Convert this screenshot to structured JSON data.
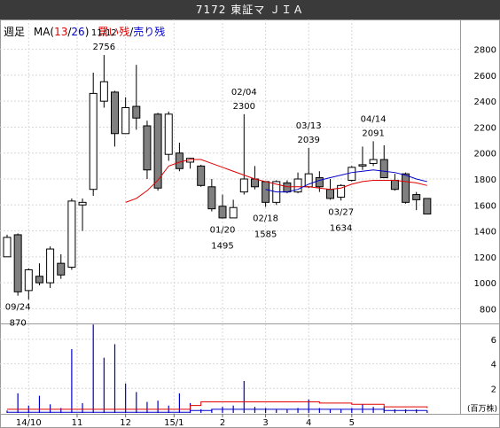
{
  "window": {
    "title": "7172 東証マ ＪＩＡ"
  },
  "header": {
    "period": "週足",
    "ma_prefix": "MA(",
    "ma_short": "13",
    "ma_sep": "/",
    "ma_long": "26",
    "ma_suffix": ")",
    "buy_label": "買い残",
    "slash": "/",
    "sell_label": "売り残"
  },
  "colors": {
    "ma_short": "#e00000",
    "ma_long": "#0000cc",
    "volume": "#0000cc",
    "buy": "#e00000",
    "sell": "#0000cc"
  },
  "chart_data": {
    "type": "candlestick",
    "y_axis": {
      "min": 700,
      "max": 2900,
      "ticks": [
        "2800",
        "2600",
        "2400",
        "2200",
        "2000",
        "1800",
        "1600",
        "1400",
        "1200",
        "1000",
        "800"
      ]
    },
    "volume_axis": {
      "unit": "(百万株)",
      "ticks": [
        "6",
        "4",
        "2"
      ],
      "max": 7
    },
    "x_labels": [
      {
        "label": "14/10",
        "week": 3
      },
      {
        "label": "11",
        "week": 7.5
      },
      {
        "label": "12",
        "week": 12
      },
      {
        "label": "15/1",
        "week": 16.5
      },
      {
        "label": "2",
        "week": 21
      },
      {
        "label": "3",
        "week": 25
      },
      {
        "label": "4",
        "week": 29
      },
      {
        "label": "5",
        "week": 33
      }
    ],
    "candles": [
      {
        "o": 1200,
        "h": 1370,
        "l": 1200,
        "c": 1350
      },
      {
        "o": 1370,
        "h": 1380,
        "l": 900,
        "c": 930
      },
      {
        "o": 940,
        "h": 1110,
        "l": 870,
        "c": 1100
      },
      {
        "o": 1050,
        "h": 1150,
        "l": 980,
        "c": 1000
      },
      {
        "o": 1000,
        "h": 1280,
        "l": 960,
        "c": 1260
      },
      {
        "o": 1150,
        "h": 1220,
        "l": 1030,
        "c": 1060
      },
      {
        "o": 1120,
        "h": 1650,
        "l": 1100,
        "c": 1630
      },
      {
        "o": 1600,
        "h": 1650,
        "l": 1400,
        "c": 1620
      },
      {
        "o": 1720,
        "h": 2620,
        "l": 1670,
        "c": 2460
      },
      {
        "o": 2400,
        "h": 2756,
        "l": 2350,
        "c": 2550
      },
      {
        "o": 2470,
        "h": 2480,
        "l": 2050,
        "c": 2150
      },
      {
        "o": 2150,
        "h": 2430,
        "l": 2150,
        "c": 2350
      },
      {
        "o": 2360,
        "h": 2680,
        "l": 2180,
        "c": 2270
      },
      {
        "o": 2210,
        "h": 2250,
        "l": 1800,
        "c": 1870
      },
      {
        "o": 2300,
        "h": 2310,
        "l": 1710,
        "c": 1730
      },
      {
        "o": 1990,
        "h": 2320,
        "l": 1940,
        "c": 2300
      },
      {
        "o": 2000,
        "h": 2080,
        "l": 1860,
        "c": 1880
      },
      {
        "o": 1930,
        "h": 1960,
        "l": 1880,
        "c": 1960
      },
      {
        "o": 1900,
        "h": 1910,
        "l": 1740,
        "c": 1750
      },
      {
        "o": 1740,
        "h": 1800,
        "l": 1550,
        "c": 1570
      },
      {
        "o": 1590,
        "h": 1680,
        "l": 1495,
        "c": 1500
      },
      {
        "o": 1500,
        "h": 1640,
        "l": 1500,
        "c": 1580
      },
      {
        "o": 1700,
        "h": 2300,
        "l": 1680,
        "c": 1800
      },
      {
        "o": 1800,
        "h": 1900,
        "l": 1720,
        "c": 1740
      },
      {
        "o": 1780,
        "h": 1780,
        "l": 1585,
        "c": 1620
      },
      {
        "o": 1620,
        "h": 1790,
        "l": 1600,
        "c": 1780
      },
      {
        "o": 1770,
        "h": 1790,
        "l": 1690,
        "c": 1700
      },
      {
        "o": 1700,
        "h": 1850,
        "l": 1690,
        "c": 1800
      },
      {
        "o": 1740,
        "h": 2039,
        "l": 1730,
        "c": 1840
      },
      {
        "o": 1810,
        "h": 1860,
        "l": 1700,
        "c": 1740
      },
      {
        "o": 1720,
        "h": 1800,
        "l": 1640,
        "c": 1650
      },
      {
        "o": 1660,
        "h": 1760,
        "l": 1634,
        "c": 1750
      },
      {
        "o": 1790,
        "h": 1900,
        "l": 1780,
        "c": 1890
      },
      {
        "o": 1900,
        "h": 2050,
        "l": 1870,
        "c": 1910
      },
      {
        "o": 1920,
        "h": 2091,
        "l": 1900,
        "c": 1950
      },
      {
        "o": 1950,
        "h": 2060,
        "l": 1810,
        "c": 1810
      },
      {
        "o": 1790,
        "h": 1840,
        "l": 1710,
        "c": 1720
      },
      {
        "o": 1840,
        "h": 1850,
        "l": 1610,
        "c": 1620
      },
      {
        "o": 1680,
        "h": 1700,
        "l": 1560,
        "c": 1640
      },
      {
        "o": 1650,
        "h": 1650,
        "l": 1530,
        "c": 1530
      }
    ],
    "ma_short": [
      [
        12,
        1620
      ],
      [
        13,
        1650
      ],
      [
        14,
        1710
      ],
      [
        15,
        1790
      ],
      [
        16,
        1900
      ],
      [
        17,
        1930
      ],
      [
        18,
        1950
      ],
      [
        19,
        1950
      ],
      [
        20,
        1920
      ],
      [
        21,
        1890
      ],
      [
        22,
        1860
      ],
      [
        23,
        1830
      ],
      [
        24,
        1800
      ],
      [
        25,
        1780
      ],
      [
        26,
        1760
      ],
      [
        27,
        1740
      ],
      [
        28,
        1740
      ],
      [
        29,
        1740
      ],
      [
        30,
        1730
      ],
      [
        31,
        1720
      ],
      [
        32,
        1730
      ],
      [
        33,
        1760
      ],
      [
        34,
        1780
      ],
      [
        35,
        1790
      ],
      [
        36,
        1790
      ],
      [
        37,
        1790
      ],
      [
        38,
        1780
      ],
      [
        39,
        1770
      ],
      [
        40,
        1750
      ]
    ],
    "ma_long": [
      [
        25,
        1720
      ],
      [
        26,
        1700
      ],
      [
        27,
        1700
      ],
      [
        28,
        1720
      ],
      [
        29,
        1760
      ],
      [
        30,
        1790
      ],
      [
        31,
        1810
      ],
      [
        32,
        1830
      ],
      [
        33,
        1850
      ],
      [
        34,
        1860
      ],
      [
        35,
        1870
      ],
      [
        36,
        1860
      ],
      [
        37,
        1850
      ],
      [
        38,
        1830
      ],
      [
        39,
        1800
      ],
      [
        40,
        1780
      ]
    ],
    "volume": [
      0.2,
      1.6,
      0.6,
      1.4,
      0.7,
      0.4,
      5.2,
      0.8,
      7.2,
      4.5,
      5.6,
      2.4,
      1.7,
      0.9,
      1.0,
      0.6,
      1.6,
      0.8,
      0.3,
      0.3,
      0.5,
      0.6,
      2.6,
      0.5,
      0.4,
      0.3,
      0.3,
      0.4,
      1.1,
      0.4,
      0.3,
      0.3,
      0.4,
      0.7,
      0.5,
      0.5,
      0.3,
      0.3,
      0.3,
      0.2
    ],
    "buy_remain": [
      [
        1,
        0.3
      ],
      [
        8,
        0.3
      ],
      [
        16,
        0.3
      ],
      [
        18,
        0.6
      ],
      [
        19,
        0.9
      ],
      [
        20,
        0.9
      ],
      [
        22,
        0.9
      ],
      [
        28,
        0.9
      ],
      [
        30,
        0.8
      ],
      [
        33,
        0.7
      ],
      [
        36,
        0.5
      ],
      [
        40,
        0.4
      ]
    ],
    "sell_remain": [
      [
        1,
        0.05
      ],
      [
        16,
        0.05
      ],
      [
        18,
        0.2
      ],
      [
        20,
        0.3
      ],
      [
        25,
        0.3
      ],
      [
        30,
        0.3
      ],
      [
        36,
        0.2
      ],
      [
        40,
        0.2
      ]
    ],
    "annotations": [
      {
        "text": "11/12",
        "value": "2756",
        "week": 10,
        "pos": "above"
      },
      {
        "text": "09/24",
        "value": "870",
        "week": 2,
        "pos": "below"
      },
      {
        "text": "02/04",
        "value": "2300",
        "week": 23,
        "pos": "above"
      },
      {
        "text": "01/20",
        "value": "1495",
        "week": 21,
        "pos": "below"
      },
      {
        "text": "02/18",
        "value": "1585",
        "week": 25,
        "pos": "below"
      },
      {
        "text": "03/13",
        "value": "2039",
        "week": 29,
        "pos": "above"
      },
      {
        "text": "03/27",
        "value": "1634",
        "week": 32,
        "pos": "below"
      },
      {
        "text": "04/14",
        "value": "2091",
        "week": 35,
        "pos": "above"
      }
    ]
  }
}
